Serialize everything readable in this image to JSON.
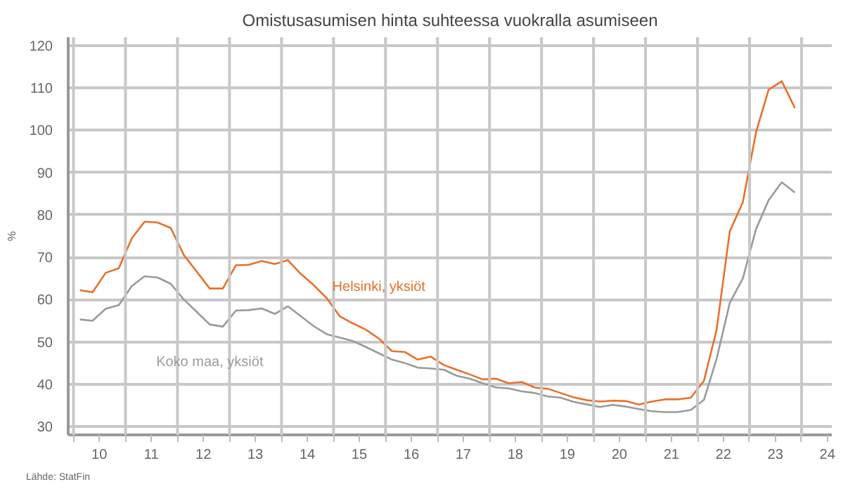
{
  "chart_data": {
    "type": "line",
    "title": "Omistusasumisen hinta suhteessa vuokralla asumiseen",
    "ylabel": "%",
    "x": [
      "2010-02-15",
      "2010-05-15",
      "2010-08-15",
      "2010-11-15",
      "2011-02-15",
      "2011-05-15",
      "2011-08-15",
      "2011-11-15",
      "2012-02-15",
      "2012-05-15",
      "2012-08-15",
      "2012-11-15",
      "2013-02-15",
      "2013-05-15",
      "2013-08-15",
      "2013-11-15",
      "2014-02-15",
      "2014-05-15",
      "2014-08-15",
      "2014-11-15",
      "2015-02-15",
      "2015-05-15",
      "2015-08-15",
      "2015-11-15",
      "2016-02-15",
      "2016-05-15",
      "2016-08-15",
      "2016-11-15",
      "2017-02-15",
      "2017-05-15",
      "2017-08-15",
      "2017-11-15",
      "2018-02-15",
      "2018-05-15",
      "2018-08-15",
      "2018-11-15",
      "2019-02-15",
      "2019-05-15",
      "2019-08-15",
      "2019-11-15",
      "2020-02-15",
      "2020-05-15",
      "2020-08-15",
      "2020-11-15",
      "2021-02-15",
      "2021-05-15",
      "2021-08-15",
      "2021-11-15",
      "2022-02-15",
      "2022-05-15",
      "2022-08-15",
      "2022-11-15",
      "2023-02-15",
      "2023-05-15",
      "2023-08-15",
      "2023-11-15"
    ],
    "series": [
      {
        "name": "Helsinki, yksiöt",
        "color": "#e8702a",
        "values": [
          62.2,
          61.7,
          66.3,
          67.4,
          74.5,
          78.4,
          78.2,
          76.9,
          70.5,
          66.6,
          62.6,
          62.6,
          68.1,
          68.2,
          69.1,
          68.4,
          69.3,
          66.1,
          63.4,
          60.3,
          56.0,
          54.4,
          52.9,
          50.8,
          47.8,
          47.6,
          45.8,
          46.5,
          44.5,
          43.4,
          42.3,
          41.1,
          41.3,
          40.2,
          40.5,
          39.2,
          38.9,
          37.9,
          36.9,
          36.2,
          35.9,
          36.1,
          36.0,
          35.2,
          35.9,
          36.4,
          36.4,
          36.8,
          40.8,
          52.9,
          76.1,
          83.0,
          99.5,
          109.6,
          111.6,
          105.3
        ]
      },
      {
        "name": "Koko maa, yksiöt",
        "color": "#9a9a9a",
        "values": [
          55.3,
          55.0,
          57.8,
          58.7,
          63.2,
          65.5,
          65.2,
          63.7,
          60.0,
          57.1,
          54.1,
          53.6,
          57.4,
          57.5,
          57.9,
          56.6,
          58.4,
          56.1,
          53.7,
          51.8,
          51.0,
          50.2,
          48.8,
          47.3,
          45.8,
          45.0,
          43.9,
          43.7,
          43.4,
          42.0,
          41.3,
          40.2,
          39.2,
          39.0,
          38.3,
          37.9,
          37.1,
          36.8,
          35.8,
          35.2,
          34.6,
          35.1,
          34.7,
          34.1,
          33.6,
          33.4,
          33.4,
          33.9,
          36.3,
          46.0,
          59.2,
          65.0,
          76.6,
          83.5,
          87.7,
          85.3
        ]
      }
    ],
    "xlim": [
      "2009-11-25",
      "2024-08-01"
    ],
    "ylim": [
      28,
      122
    ],
    "xticks": [
      {
        "value": "2010",
        "label": null
      },
      {
        "value": "2010-07-01",
        "label": "10"
      },
      {
        "value": "2011",
        "label": null
      },
      {
        "value": "2011-07-01",
        "label": "11"
      },
      {
        "value": "2012",
        "label": null
      },
      {
        "value": "2012-07-01",
        "label": "12"
      },
      {
        "value": "2013",
        "label": null
      },
      {
        "value": "2013-07-01",
        "label": "13"
      },
      {
        "value": "2014",
        "label": null
      },
      {
        "value": "2014-07-01",
        "label": "14"
      },
      {
        "value": "2015",
        "label": null
      },
      {
        "value": "2015-07-01",
        "label": "15"
      },
      {
        "value": "2016",
        "label": null
      },
      {
        "value": "2016-07-01",
        "label": "16"
      },
      {
        "value": "2017",
        "label": null
      },
      {
        "value": "2017-07-01",
        "label": "17"
      },
      {
        "value": "2018",
        "label": null
      },
      {
        "value": "2018-07-01",
        "label": "18"
      },
      {
        "value": "2019",
        "label": null
      },
      {
        "value": "2019-07-01",
        "label": "19"
      },
      {
        "value": "2020",
        "label": null
      },
      {
        "value": "2020-07-01",
        "label": "20"
      },
      {
        "value": "2021",
        "label": null
      },
      {
        "value": "2021-07-01",
        "label": "21"
      },
      {
        "value": "2022",
        "label": null
      },
      {
        "value": "2022-07-01",
        "label": "22"
      },
      {
        "value": "2023",
        "label": null
      },
      {
        "value": "2023-07-01",
        "label": "23"
      },
      {
        "value": "2024",
        "label": null
      },
      {
        "value": "2024-07-01",
        "label": "24"
      }
    ],
    "yticks": [
      30,
      40,
      50,
      60,
      70,
      80,
      90,
      100,
      110,
      120
    ],
    "grid": true,
    "line_style": "solid",
    "marker": "none",
    "annotations": [
      "Lähde: StatFin"
    ]
  }
}
